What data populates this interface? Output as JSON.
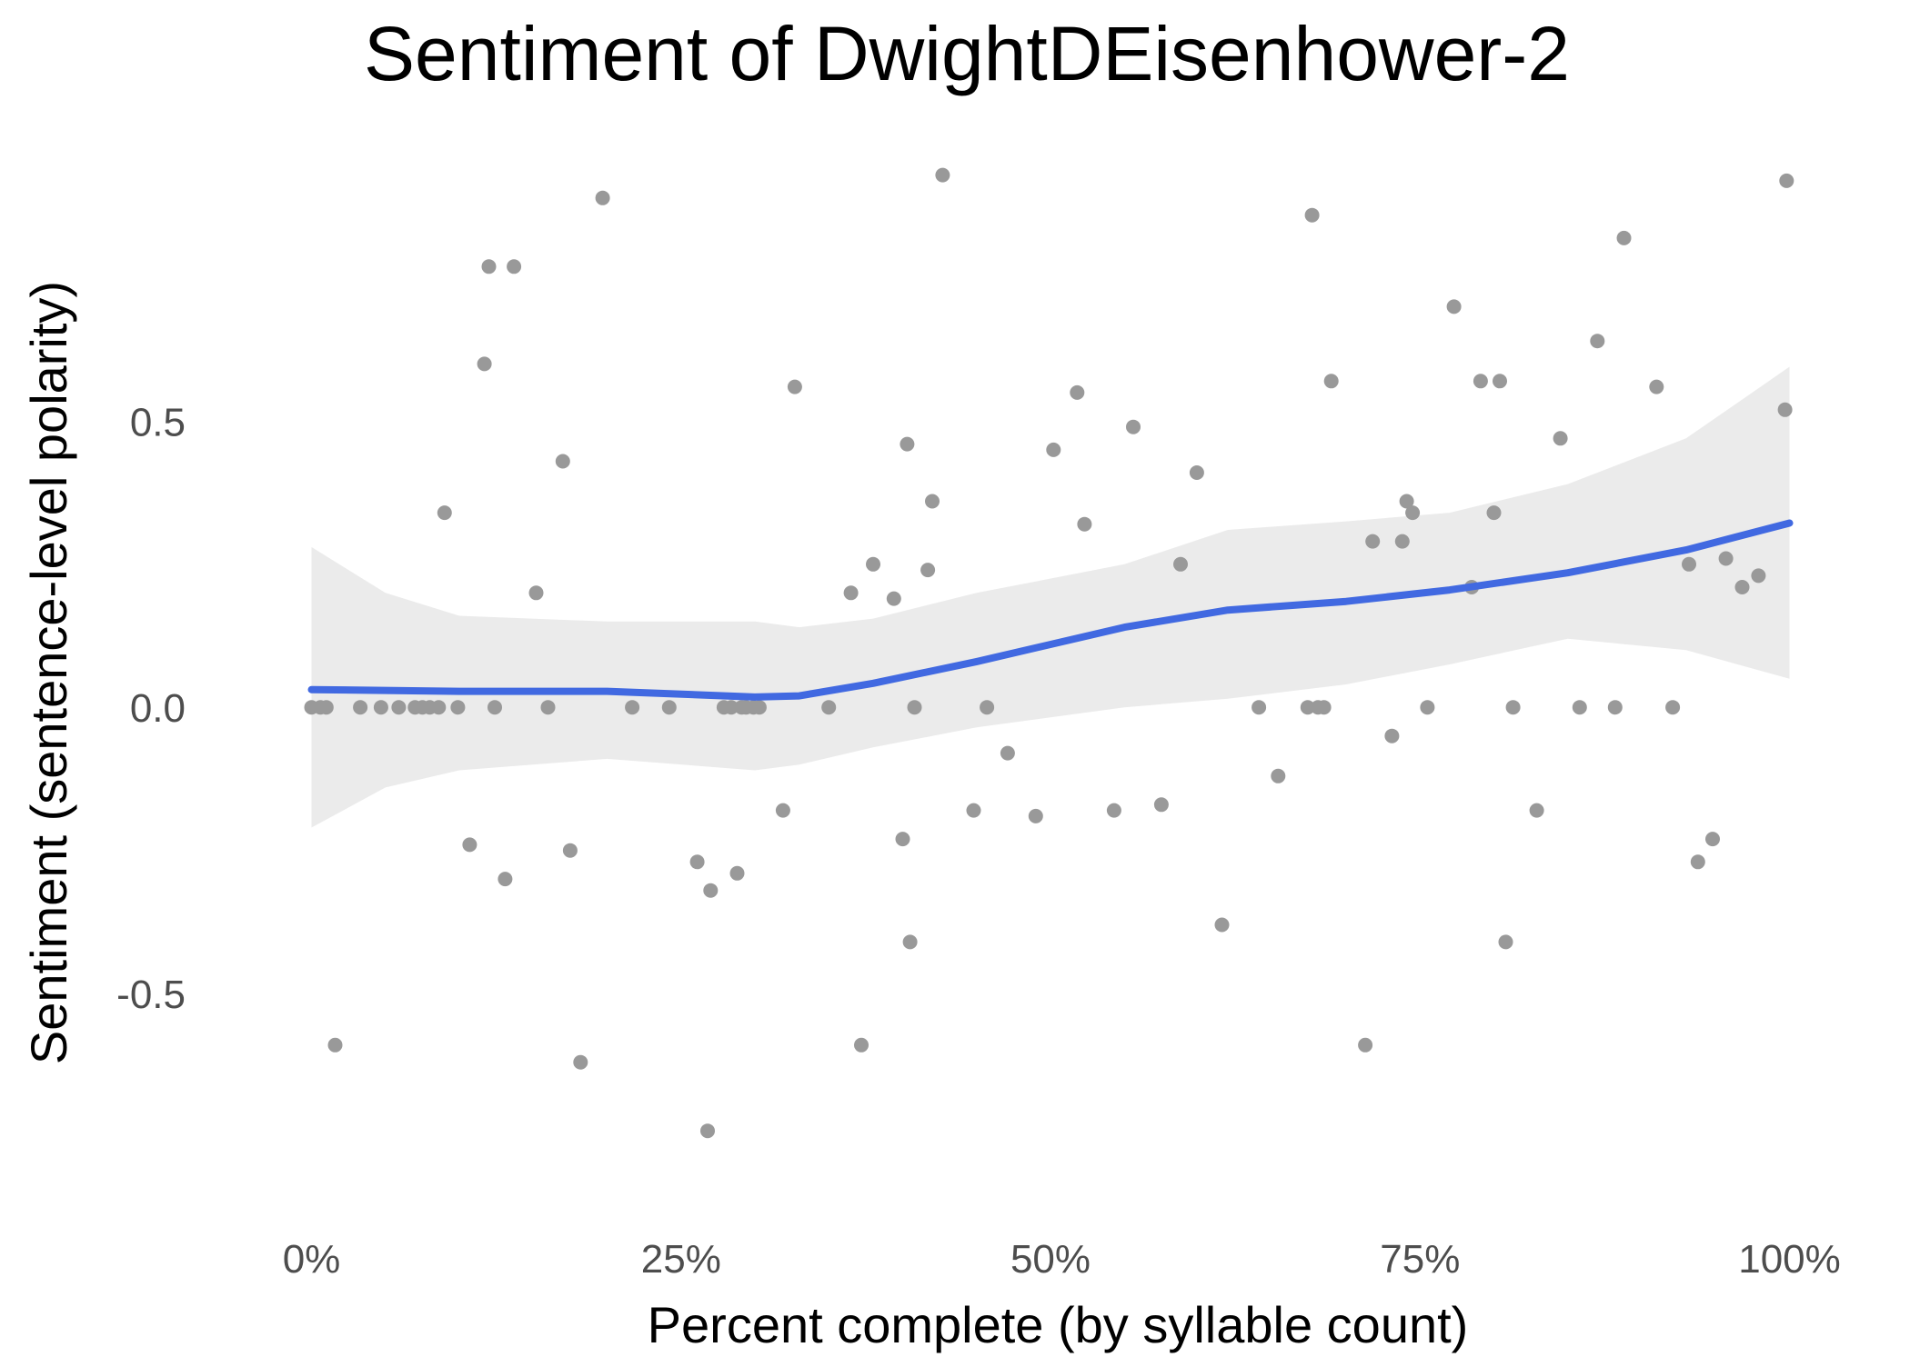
{
  "chart_data": {
    "type": "scatter",
    "title": "Sentiment of DwightDEisenhower-2",
    "xlabel": "Percent complete (by syllable count)",
    "ylabel": "Sentiment (sentence-level polarity)",
    "xlim": [
      -0.02,
      1.02
    ],
    "ylim": [
      -0.8,
      0.95
    ],
    "x_ticks": [
      0,
      0.25,
      0.5,
      0.75,
      1.0
    ],
    "x_tick_labels": [
      "0%",
      "25%",
      "50%",
      "75%",
      "100%"
    ],
    "y_ticks": [
      -0.5,
      0.0,
      0.5
    ],
    "y_tick_labels": [
      "-0.5",
      "0.0",
      "0.5"
    ],
    "grid": false,
    "legend": "none",
    "colors": {
      "points": "#999999",
      "smooth_line": "#4169E1",
      "confidence_band": "#EBEBEB",
      "text": "#000000",
      "tick_text": "#4D4D4D"
    },
    "series": [
      {
        "type": "scatter",
        "x": [
          0.0,
          0.006,
          0.01,
          0.033,
          0.047,
          0.059,
          0.07,
          0.075,
          0.08,
          0.086,
          0.09,
          0.099,
          0.016,
          0.117,
          0.107,
          0.12,
          0.124,
          0.131,
          0.137,
          0.152,
          0.16,
          0.17,
          0.175,
          0.182,
          0.197,
          0.217,
          0.242,
          0.261,
          0.268,
          0.27,
          0.279,
          0.284,
          0.288,
          0.291,
          0.294,
          0.299,
          0.303,
          0.319,
          0.327,
          0.35,
          0.365,
          0.372,
          0.38,
          0.394,
          0.4,
          0.403,
          0.405,
          0.408,
          0.417,
          0.42,
          0.427,
          0.448,
          0.457,
          0.471,
          0.49,
          0.502,
          0.518,
          0.523,
          0.543,
          0.556,
          0.575,
          0.588,
          0.599,
          0.616,
          0.641,
          0.654,
          0.674,
          0.677,
          0.681,
          0.685,
          0.69,
          0.713,
          0.718,
          0.731,
          0.738,
          0.741,
          0.745,
          0.755,
          0.773,
          0.785,
          0.791,
          0.8,
          0.804,
          0.808,
          0.813,
          0.829,
          0.845,
          0.858,
          0.87,
          0.882,
          0.888,
          0.91,
          0.921,
          0.932,
          0.938,
          0.948,
          0.957,
          0.968,
          0.979,
          0.997,
          0.998
        ],
        "y": [
          0.0,
          0.0,
          0.0,
          0.0,
          0.0,
          0.0,
          0.0,
          0.0,
          0.0,
          0.0,
          0.34,
          0.0,
          -0.59,
          0.6,
          -0.24,
          0.77,
          0.0,
          -0.3,
          0.77,
          0.2,
          0.0,
          0.43,
          -0.25,
          -0.62,
          0.89,
          0.0,
          0.0,
          -0.27,
          -0.74,
          -0.32,
          0.0,
          0.0,
          -0.29,
          0.0,
          0.0,
          0.0,
          0.0,
          -0.18,
          0.56,
          0.0,
          0.2,
          -0.59,
          0.25,
          0.19,
          -0.23,
          0.46,
          -0.41,
          0.0,
          0.24,
          0.36,
          0.93,
          -0.18,
          0.0,
          -0.08,
          -0.19,
          0.45,
          0.55,
          0.32,
          -0.18,
          0.49,
          -0.17,
          0.25,
          0.41,
          -0.38,
          0.0,
          -0.12,
          0.0,
          0.86,
          0.0,
          0.0,
          0.57,
          -0.59,
          0.29,
          -0.05,
          0.29,
          0.36,
          0.34,
          0.0,
          0.7,
          0.21,
          0.57,
          0.34,
          0.57,
          -0.41,
          0.0,
          -0.18,
          0.47,
          0.0,
          0.64,
          0.0,
          0.82,
          0.56,
          0.0,
          0.25,
          -0.27,
          -0.23,
          0.26,
          0.21,
          0.23,
          0.52,
          0.92
        ]
      },
      {
        "type": "line",
        "x": [
          0.0,
          0.1,
          0.2,
          0.3,
          0.33,
          0.38,
          0.45,
          0.55,
          0.62,
          0.7,
          0.77,
          0.85,
          0.93,
          1.0
        ],
        "y": [
          0.031,
          0.028,
          0.028,
          0.018,
          0.02,
          0.042,
          0.08,
          0.14,
          0.17,
          0.185,
          0.205,
          0.235,
          0.275,
          0.322
        ]
      },
      {
        "type": "band",
        "x": [
          0.0,
          0.05,
          0.1,
          0.2,
          0.3,
          0.33,
          0.38,
          0.45,
          0.55,
          0.62,
          0.7,
          0.77,
          0.85,
          0.93,
          1.0
        ],
        "y_low": [
          -0.21,
          -0.14,
          -0.11,
          -0.09,
          -0.11,
          -0.1,
          -0.07,
          -0.035,
          0.0,
          0.015,
          0.04,
          0.075,
          0.12,
          0.1,
          0.05
        ],
        "y_high": [
          0.28,
          0.2,
          0.16,
          0.15,
          0.15,
          0.14,
          0.155,
          0.2,
          0.25,
          0.31,
          0.325,
          0.34,
          0.39,
          0.47,
          0.595
        ]
      }
    ]
  }
}
